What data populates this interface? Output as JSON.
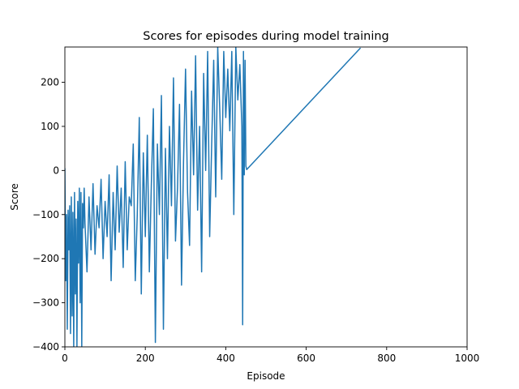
{
  "chart_data": {
    "type": "line",
    "title": "Scores for episodes during model training",
    "xlabel": "Episode",
    "ylabel": "Score",
    "xlim": [
      0,
      1000
    ],
    "ylim": [
      -400,
      280
    ],
    "xticks": [
      0,
      200,
      400,
      600,
      800,
      1000
    ],
    "yticks": [
      -400,
      -300,
      -200,
      -100,
      0,
      100,
      200
    ],
    "grid": false,
    "legend": "none",
    "colors": {
      "series": "#1f77b4"
    },
    "series": [
      {
        "name": "",
        "x": [
          0,
          2,
          4,
          6,
          8,
          10,
          12,
          14,
          16,
          18,
          20,
          22,
          24,
          26,
          28,
          30,
          32,
          34,
          36,
          38,
          40,
          42,
          44,
          46,
          48,
          50,
          55,
          60,
          65,
          70,
          75,
          80,
          85,
          90,
          95,
          100,
          105,
          110,
          115,
          120,
          125,
          130,
          135,
          140,
          145,
          150,
          155,
          160,
          165,
          170,
          175,
          180,
          185,
          190,
          195,
          200,
          205,
          210,
          215,
          220,
          225,
          230,
          235,
          240,
          245,
          250,
          255,
          260,
          265,
          270,
          275,
          280,
          285,
          290,
          295,
          300,
          305,
          310,
          315,
          320,
          325,
          330,
          335,
          340,
          345,
          350,
          355,
          360,
          365,
          370,
          375,
          380,
          385,
          390,
          395,
          400,
          405,
          410,
          415,
          420,
          425,
          430,
          435,
          440,
          442,
          444,
          446,
          448,
          450,
          452,
          735
        ],
        "values": [
          5,
          -250,
          -100,
          -360,
          -90,
          -180,
          -80,
          -370,
          -60,
          -330,
          -95,
          -400,
          -50,
          -280,
          -110,
          -400,
          -70,
          -210,
          -40,
          -300,
          -50,
          -400,
          -75,
          -130,
          -40,
          -120,
          -230,
          -60,
          -180,
          -30,
          -190,
          -80,
          -130,
          -20,
          -200,
          -70,
          -150,
          -10,
          -250,
          -50,
          -180,
          10,
          -140,
          -40,
          -220,
          20,
          -180,
          -60,
          -80,
          60,
          -250,
          -100,
          120,
          -280,
          40,
          -150,
          80,
          -230,
          -30,
          140,
          -390,
          60,
          -100,
          170,
          -360,
          50,
          -200,
          100,
          -80,
          210,
          -160,
          -40,
          150,
          -260,
          20,
          230,
          -50,
          -170,
          180,
          -10,
          260,
          -90,
          100,
          -230,
          220,
          0,
          270,
          -150,
          60,
          250,
          -60,
          280,
          140,
          -20,
          270,
          120,
          230,
          90,
          270,
          -100,
          280,
          160,
          240,
          100,
          -350,
          270,
          -10,
          250,
          10,
          2,
          278
        ]
      }
    ]
  }
}
